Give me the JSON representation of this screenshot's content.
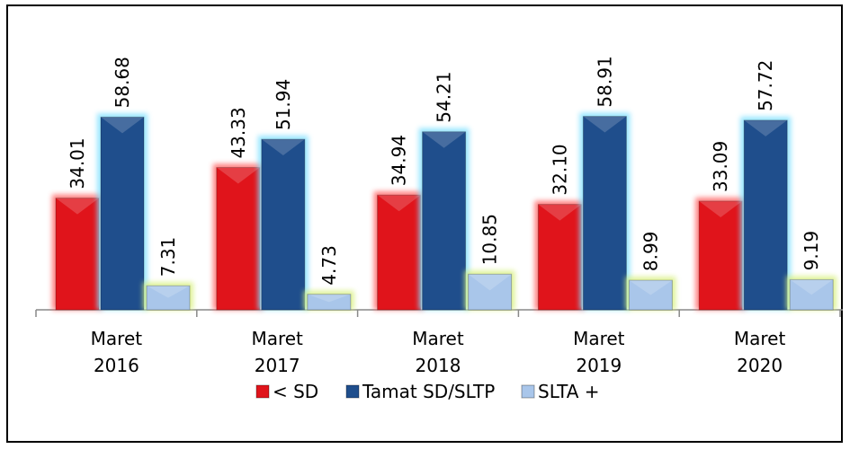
{
  "chart_data": {
    "type": "bar",
    "categories": [
      "Maret 2016",
      "Maret 2017",
      "Maret 2018",
      "Maret 2019",
      "Maret 2020"
    ],
    "series": [
      {
        "name": "< SD",
        "color": "#e0141b",
        "values": [
          34.01,
          43.33,
          34.94,
          32.1,
          33.09
        ],
        "value_labels": [
          "34.01",
          "43.33",
          "34.94",
          "32.10",
          "33.09"
        ]
      },
      {
        "name": "Tamat SD/SLTP",
        "color": "#1f4e8c",
        "values": [
          58.68,
          51.94,
          54.21,
          58.91,
          57.72
        ],
        "value_labels": [
          "58.68",
          "51.94",
          "54.21",
          "58.91",
          "57.72"
        ]
      },
      {
        "name": "SLTA +",
        "color": "#a9c6ea",
        "values": [
          7.31,
          4.73,
          10.85,
          8.99,
          9.19
        ],
        "value_labels": [
          "7.31",
          "4.73",
          "10.85",
          "8.99",
          "9.19"
        ]
      }
    ],
    "ylim": [
      0,
      70
    ],
    "legend": "bottom"
  }
}
